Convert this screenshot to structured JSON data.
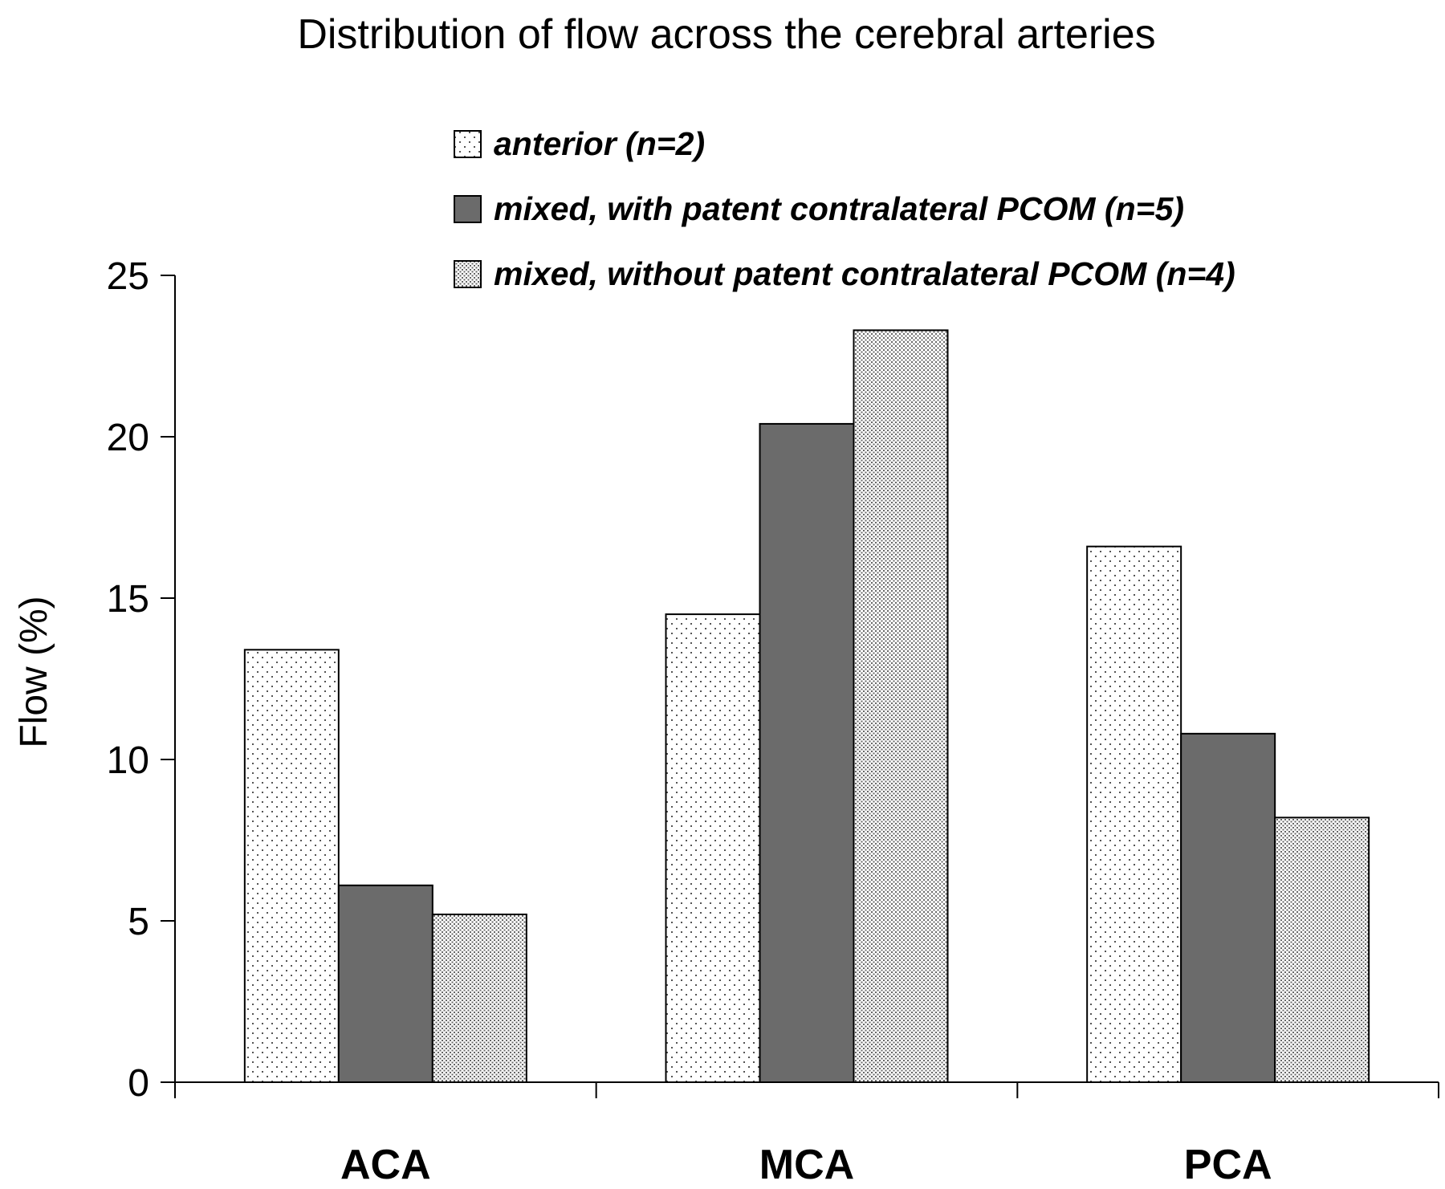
{
  "chart_data": {
    "type": "bar",
    "title": "Distribution of flow across the cerebral arteries",
    "xlabel": "",
    "ylabel": "Flow (%)",
    "ylim": [
      0,
      25
    ],
    "yticks": [
      "0",
      "5",
      "10",
      "15",
      "20",
      "25"
    ],
    "categories": [
      "ACA",
      "MCA",
      "PCA"
    ],
    "legend_position": "top-right",
    "grid": false,
    "series": [
      {
        "name": "anterior (n=2)",
        "values": [
          13.4,
          14.5,
          16.6
        ],
        "pattern": "sparse-dots",
        "color": "#ffffff"
      },
      {
        "name": "mixed, with patent contralateral PCOM (n=5)",
        "values": [
          6.1,
          20.4,
          10.8
        ],
        "pattern": "solid",
        "color": "#6b6b6b"
      },
      {
        "name": "mixed, without patent contralateral PCOM (n=4)",
        "values": [
          5.2,
          23.3,
          8.2
        ],
        "pattern": "dense-dots",
        "color": "#ffffff"
      }
    ]
  }
}
